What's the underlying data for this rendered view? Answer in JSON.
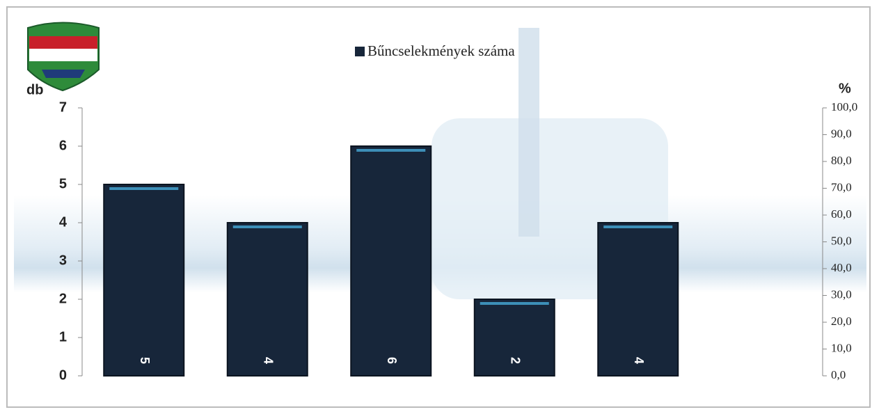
{
  "chart_data": {
    "type": "bar",
    "legend": "Bűncselekmények száma",
    "y_label": "db",
    "y2_label": "%",
    "categories": [
      null,
      null,
      null,
      null,
      null
    ],
    "series": [
      {
        "name": "Bűncselekmények száma",
        "color": "#17263a",
        "values": [
          5,
          4,
          6,
          2,
          4
        ]
      }
    ],
    "ylim": [
      0,
      7
    ],
    "yticks": [
      0,
      1,
      2,
      3,
      4,
      5,
      6,
      7
    ],
    "y2lim": [
      0,
      100
    ],
    "y2ticks": [
      {
        "value": 0,
        "label": "0,0"
      },
      {
        "value": 10,
        "label": "10,0"
      },
      {
        "value": 20,
        "label": "20,0"
      },
      {
        "value": 30,
        "label": "30,0"
      },
      {
        "value": 40,
        "label": "40,0"
      },
      {
        "value": 50,
        "label": "50,0"
      },
      {
        "value": 60,
        "label": "60,0"
      },
      {
        "value": 70,
        "label": "70,0"
      },
      {
        "value": 80,
        "label": "80,0"
      },
      {
        "value": 90,
        "label": "90,0"
      },
      {
        "value": 100,
        "label": "100,0"
      }
    ],
    "grid": false,
    "legend_position": "top"
  }
}
